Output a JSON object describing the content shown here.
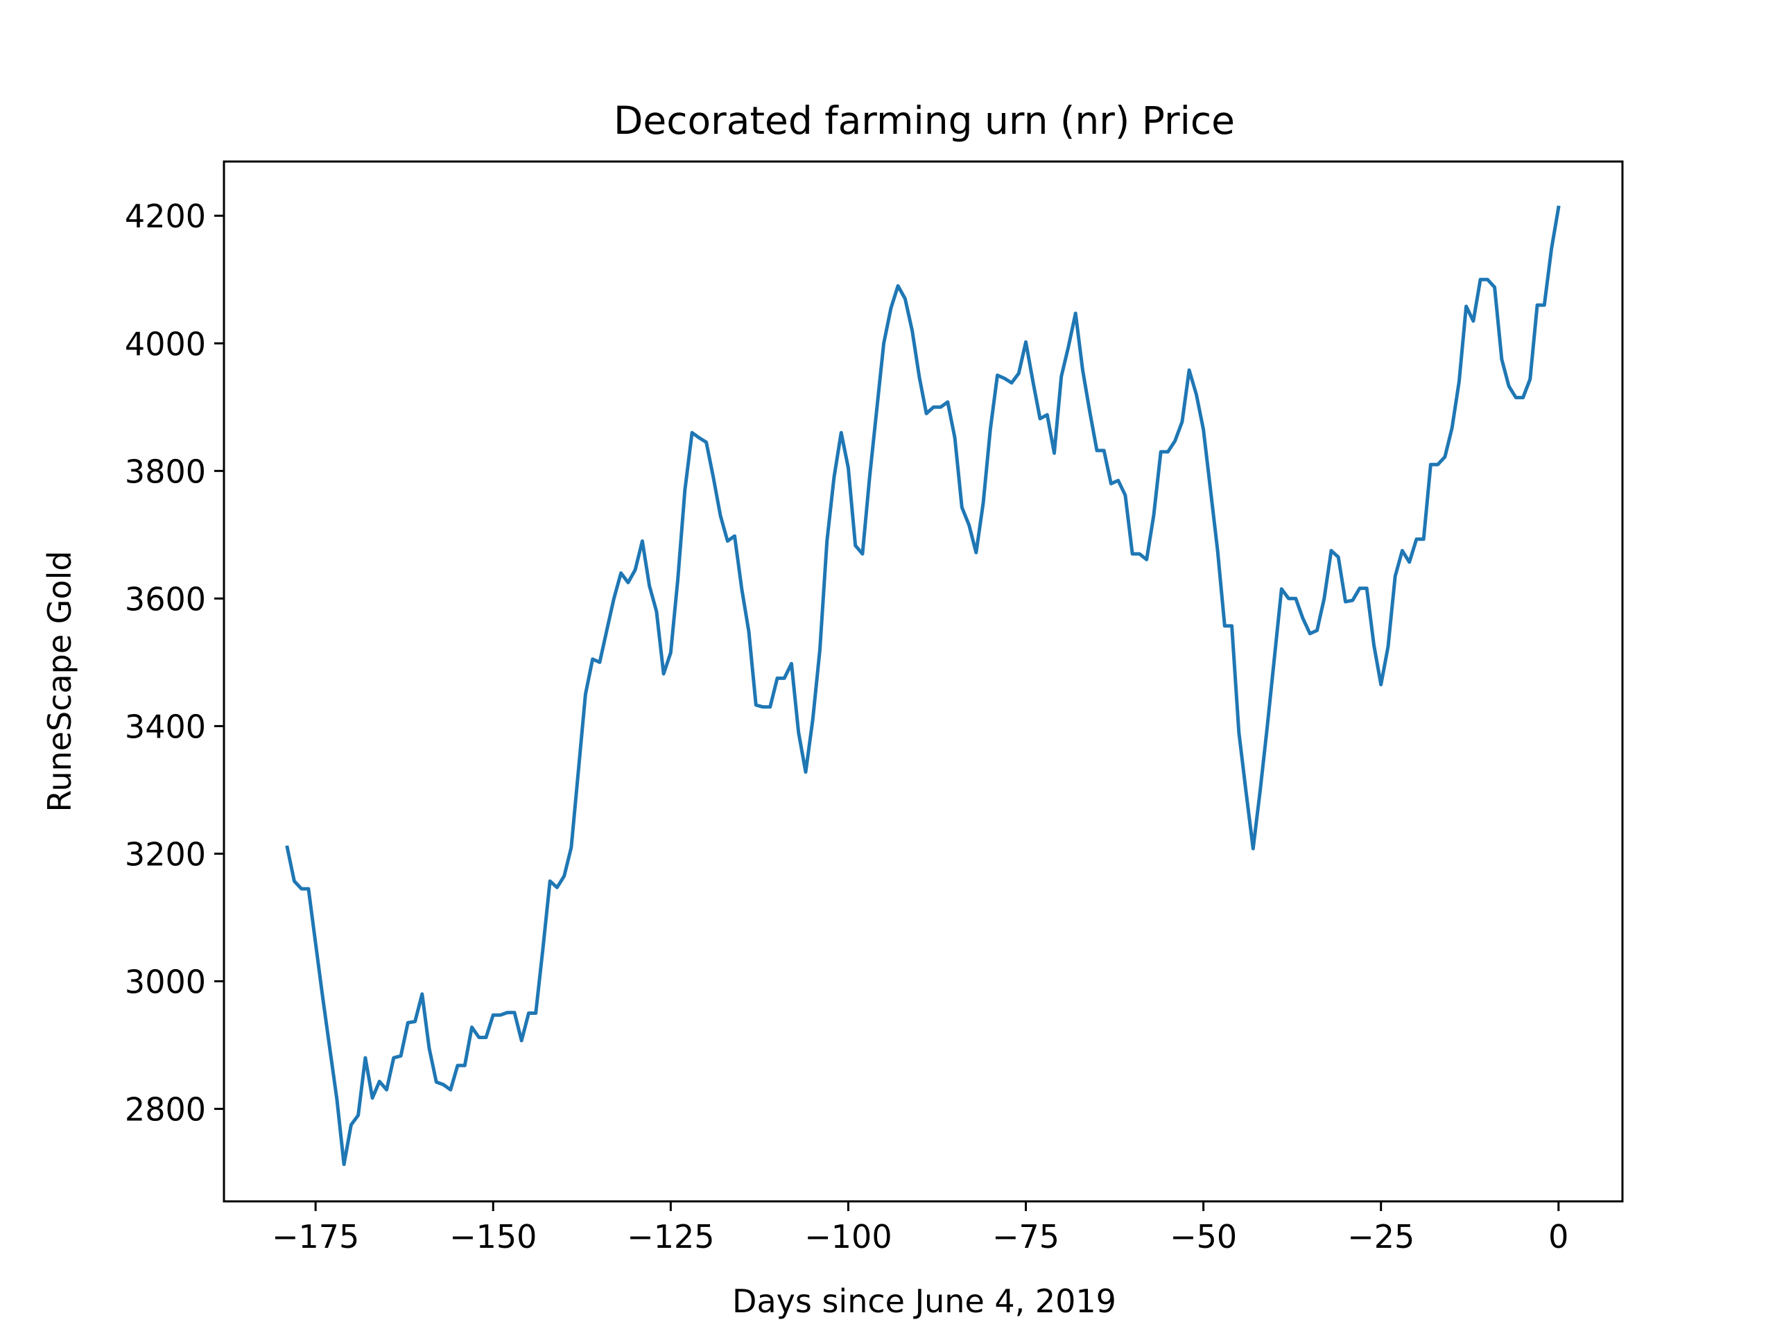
{
  "chart_data": {
    "type": "line",
    "title": "Decorated farming urn (nr) Price",
    "xlabel": "Days since June 4, 2019",
    "ylabel": "RuneScape Gold",
    "xlim": [
      -187.9,
      9.0
    ],
    "ylim": [
      2655,
      4285
    ],
    "xticks": [
      -175,
      -150,
      -125,
      -100,
      -75,
      -50,
      -25,
      0
    ],
    "xtick_labels": [
      "−175",
      "−150",
      "−125",
      "−100",
      "−75",
      "−50",
      "−25",
      "0"
    ],
    "yticks": [
      2800,
      3000,
      3200,
      3400,
      3600,
      3800,
      4000,
      4200
    ],
    "ytick_labels": [
      "2800",
      "3000",
      "3200",
      "3400",
      "3600",
      "3800",
      "4000",
      "4200"
    ],
    "grid": false,
    "line_color": "#1f77b4",
    "series": [
      {
        "x": [
          -179,
          -178,
          -177,
          -176,
          -175,
          -174,
          -173,
          -172,
          -171,
          -170,
          -169,
          -168,
          -167,
          -166,
          -165,
          -164,
          -163,
          -162,
          -161,
          -160,
          -159,
          -158,
          -157,
          -156,
          -155,
          -154,
          -153,
          -152,
          -151,
          -150,
          -149,
          -148,
          -147,
          -146,
          -145,
          -144,
          -143,
          -142,
          -141,
          -140,
          -139,
          -138,
          -137,
          -136,
          -135,
          -134,
          -133,
          -132,
          -131,
          -130,
          -129,
          -128,
          -127,
          -126,
          -125,
          -124,
          -123,
          -122,
          -121,
          -120,
          -119,
          -118,
          -117,
          -116,
          -115,
          -114,
          -113,
          -112,
          -111,
          -110,
          -109,
          -108,
          -107,
          -106,
          -105,
          -104,
          -103,
          -102,
          -101,
          -100,
          -99,
          -98,
          -97,
          -96,
          -95,
          -94,
          -93,
          -92,
          -91,
          -90,
          -89,
          -88,
          -87,
          -86,
          -85,
          -84,
          -83,
          -82,
          -81,
          -80,
          -79,
          -78,
          -77,
          -76,
          -75,
          -74,
          -73,
          -72,
          -71,
          -70,
          -69,
          -68,
          -67,
          -66,
          -65,
          -64,
          -63,
          -62,
          -61,
          -60,
          -59,
          -58,
          -57,
          -56,
          -55,
          -54,
          -53,
          -52,
          -51,
          -50,
          -49,
          -48,
          -47,
          -46,
          -45,
          -44,
          -43,
          -42,
          -41,
          -40,
          -39,
          -38,
          -37,
          -36,
          -35,
          -34,
          -33,
          -32,
          -31,
          -30,
          -29,
          -28,
          -27,
          -26,
          -25,
          -24,
          -23,
          -22,
          -21,
          -20,
          -19,
          -18,
          -17,
          -16,
          -15,
          -14,
          -13,
          -12,
          -11,
          -10,
          -9,
          -8,
          -7,
          -6,
          -5,
          -4,
          -3,
          -2,
          -1,
          0
        ],
        "y": [
          3210,
          3157,
          3145,
          3145,
          3060,
          2975,
          2895,
          2815,
          2713,
          2775,
          2790,
          2880,
          2817,
          2843,
          2830,
          2880,
          2883,
          2935,
          2937,
          2980,
          2895,
          2842,
          2838,
          2830,
          2868,
          2868,
          2928,
          2912,
          2912,
          2947,
          2947,
          2951,
          2951,
          2907,
          2950,
          2950,
          3050,
          3157,
          3147,
          3165,
          3210,
          3330,
          3450,
          3505,
          3500,
          3550,
          3600,
          3640,
          3625,
          3645,
          3690,
          3620,
          3580,
          3482,
          3515,
          3630,
          3770,
          3860,
          3852,
          3845,
          3790,
          3730,
          3690,
          3698,
          3615,
          3548,
          3433,
          3430,
          3430,
          3475,
          3475,
          3498,
          3390,
          3328,
          3410,
          3520,
          3690,
          3790,
          3860,
          3805,
          3683,
          3670,
          3790,
          3895,
          4000,
          4055,
          4090,
          4070,
          4020,
          3947,
          3890,
          3900,
          3900,
          3908,
          3852,
          3743,
          3715,
          3672,
          3750,
          3865,
          3950,
          3945,
          3938,
          3953,
          4002,
          3940,
          3882,
          3888,
          3828,
          3948,
          3995,
          4047,
          3958,
          3893,
          3832,
          3832,
          3780,
          3785,
          3762,
          3670,
          3670,
          3661,
          3730,
          3830,
          3830,
          3847,
          3877,
          3958,
          3920,
          3865,
          3770,
          3675,
          3557,
          3557,
          3390,
          3297,
          3208,
          3300,
          3400,
          3508,
          3615,
          3600,
          3600,
          3569,
          3545,
          3550,
          3600,
          3675,
          3665,
          3595,
          3597,
          3616,
          3616,
          3527,
          3465,
          3525,
          3635,
          3675,
          3657,
          3693,
          3693,
          3810,
          3810,
          3822,
          3867,
          3940,
          4058,
          4035,
          4100,
          4100,
          4088,
          3975,
          3933,
          3915,
          3915,
          3944,
          4060,
          4060,
          4148,
          4213
        ]
      }
    ]
  }
}
